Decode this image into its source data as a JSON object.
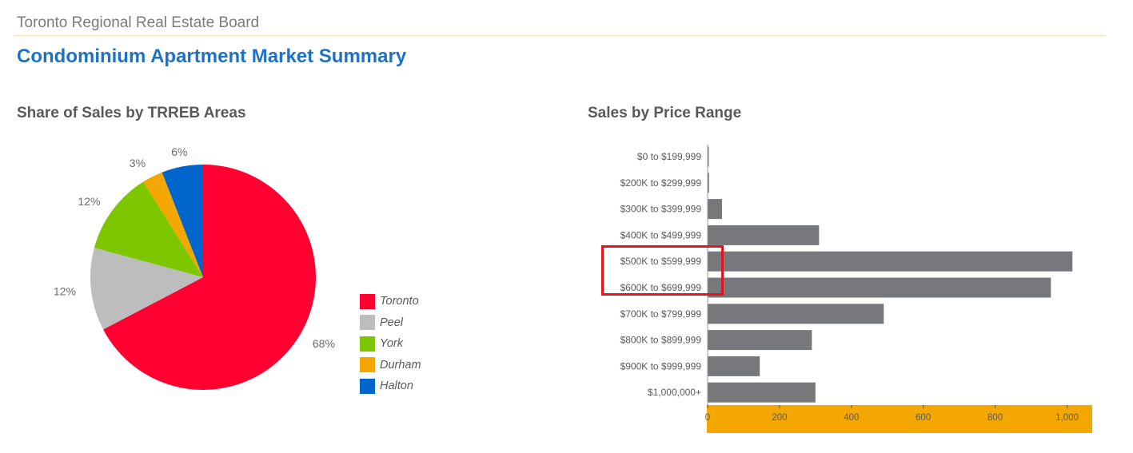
{
  "header": {
    "org_name": "Toronto Regional Real Estate Board",
    "report_title": "Condominium Apartment Market Summary"
  },
  "chart_data": [
    {
      "type": "pie",
      "title": "Share of Sales by TRREB Areas",
      "slices": [
        {
          "label": "Toronto",
          "value": 68,
          "display": "68%",
          "color": "#ff0030"
        },
        {
          "label": "Peel",
          "value": 12,
          "display": "12%",
          "color": "#bdbdbd"
        },
        {
          "label": "York",
          "value": 12,
          "display": "12%",
          "color": "#7ec600"
        },
        {
          "label": "Durham",
          "value": 3,
          "display": "3%",
          "color": "#f4a700"
        },
        {
          "label": "Halton",
          "value": 6,
          "display": "6%",
          "color": "#0066cc"
        }
      ],
      "legend_position": "right"
    },
    {
      "type": "bar",
      "orientation": "horizontal",
      "title": "Sales by Price Range",
      "categories": [
        "$0 to $199,999",
        "$200K to $299,999",
        "$300K to $399,999",
        "$400K to $499,999",
        "$500K to $599,999",
        "$600K to $699,999",
        "$700K to $799,999",
        "$800K to $899,999",
        "$900K to $999,999",
        "$1,000,000+"
      ],
      "values": [
        2,
        4,
        40,
        310,
        1015,
        955,
        490,
        290,
        145,
        300
      ],
      "xlim": [
        0,
        1070
      ],
      "xticks": [
        0,
        200,
        400,
        600,
        800,
        1000
      ],
      "xtick_labels": [
        "0",
        "200",
        "400",
        "600",
        "800",
        "1,000"
      ],
      "bar_color": "#76787b",
      "axis_band_color": "#f4a700",
      "highlighted_categories": [
        "$500K to $599,999",
        "$600K to $699,999"
      ],
      "highlight_color": "#e3141b"
    }
  ]
}
